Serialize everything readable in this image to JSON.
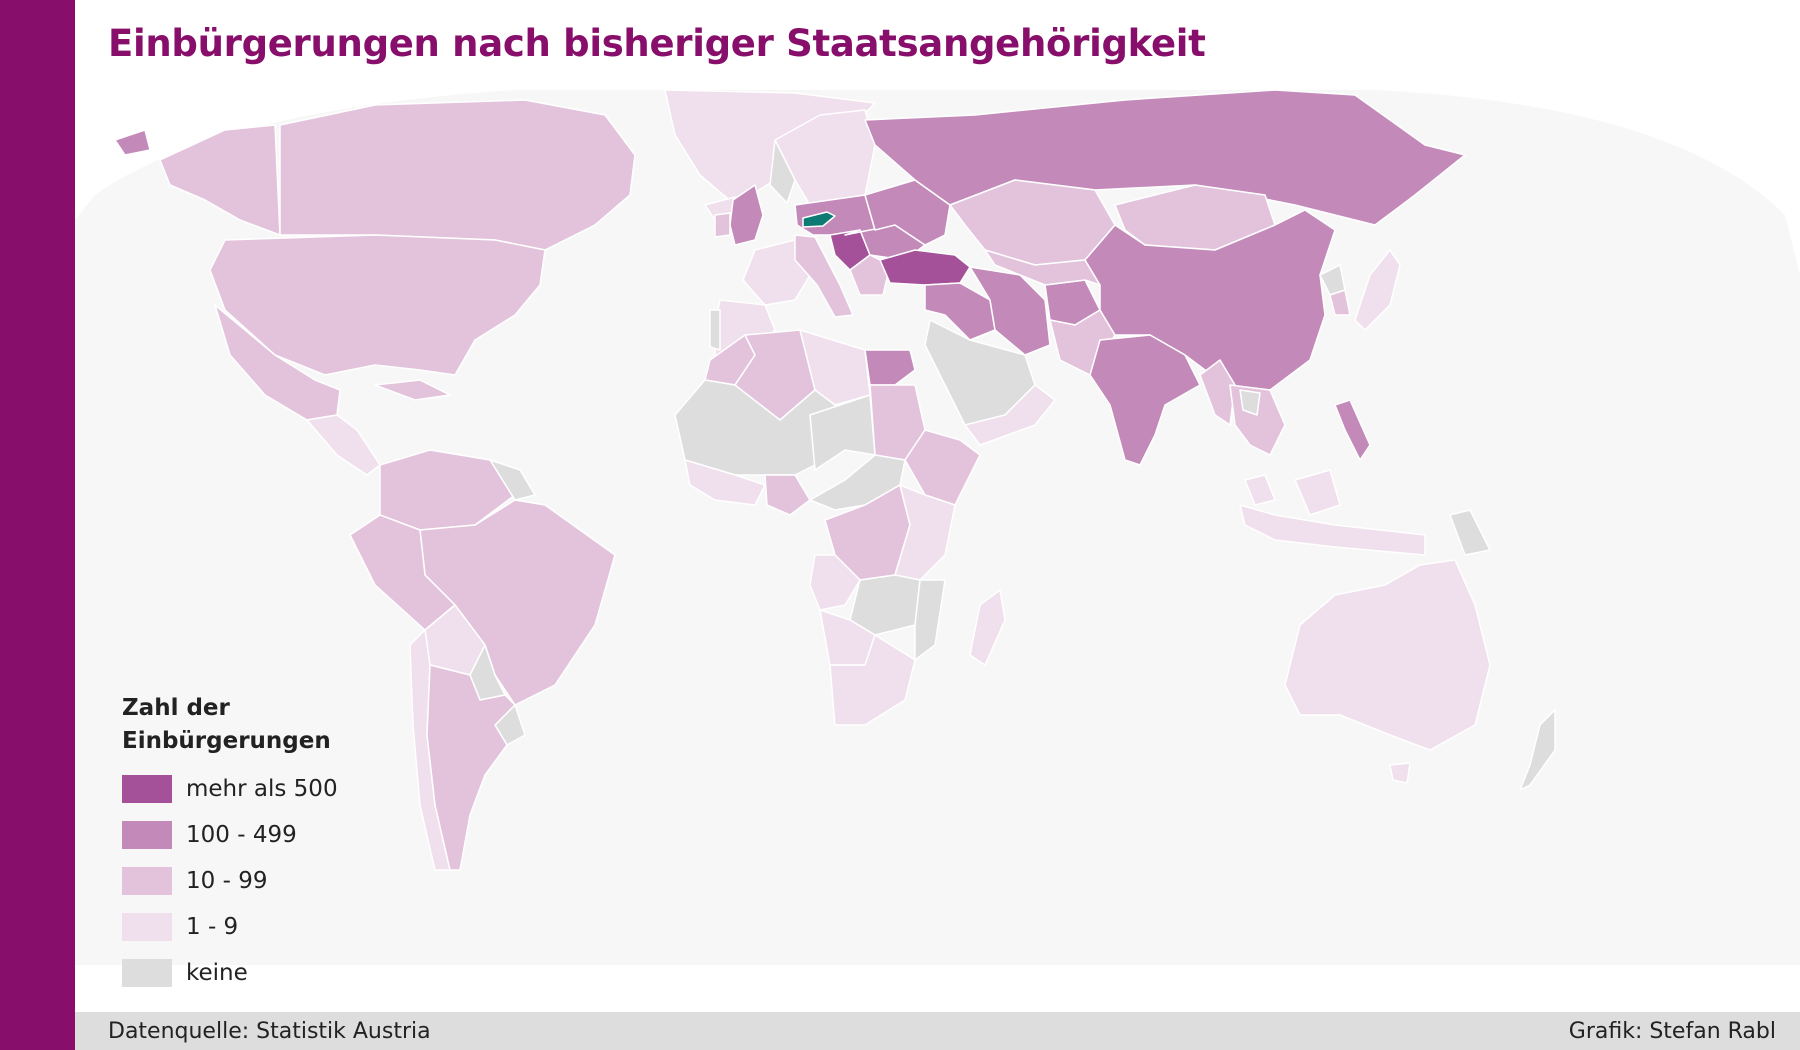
{
  "header": {
    "title": "Einbürgerungen nach bisheriger Staatsangehörigkeit"
  },
  "colors": {
    "accent": "#870e6a",
    "ocean": "#f7f7f7",
    "border": "#ffffff",
    "highlight": "#0e7a74",
    "cat_500_plus": "#a4519a",
    "cat_100_499": "#c389b9",
    "cat_10_99": "#e3c3dc",
    "cat_1_9": "#f0dfec",
    "cat_none": "#dddddd"
  },
  "legend": {
    "title_line1": "Zahl der",
    "title_line2": "Einbürgerungen",
    "items": [
      {
        "label": "mehr als 500",
        "color": "#a4519a"
      },
      {
        "label": "100 - 499",
        "color": "#c389b9"
      },
      {
        "label": "10 - 99",
        "color": "#e3c3dc"
      },
      {
        "label": "1 - 9",
        "color": "#f0dfec"
      },
      {
        "label": "keine",
        "color": "#dddddd"
      }
    ]
  },
  "map": {
    "highlight_country": "Austria",
    "categories": {
      "mehr als 500": [
        "Turkey",
        "Bosnia and Herzegovina",
        "Serbia"
      ],
      "100 - 499": [
        "Russia",
        "China",
        "India",
        "Iran",
        "Afghanistan",
        "Iraq",
        "Syria",
        "Egypt",
        "Philippines",
        "Germany",
        "United Kingdom",
        "Poland",
        "Romania",
        "Hungary",
        "Kosovo",
        "North Macedonia",
        "Ukraine",
        "Croatia",
        "Slovakia",
        "Czech Republic"
      ],
      "10 - 99": [
        "United States",
        "Canada",
        "Mexico",
        "Brazil",
        "Argentina",
        "Colombia",
        "Peru",
        "Venezuela",
        "Kazakhstan",
        "Mongolia",
        "Pakistan",
        "Nigeria",
        "Algeria",
        "Sudan",
        "Ethiopia",
        "DR Congo",
        "Thailand",
        "Vietnam",
        "Indonesia",
        "Italy",
        "France"
      ],
      "1 - 9": [
        "Australia",
        "Greenland",
        "Chile",
        "Bolivia",
        "Libya",
        "Morocco",
        "Kenya",
        "Tanzania",
        "Madagascar",
        "South Africa",
        "Angola",
        "Japan",
        "Malaysia",
        "Saudi Arabia",
        "Spain",
        "Sweden"
      ],
      "keine": [
        "Mali",
        "Niger",
        "Chad",
        "Mauritania",
        "Zambia",
        "Mozambique",
        "Zimbabwe",
        "Paraguay",
        "Uruguay",
        "Guyana",
        "Papua New Guinea",
        "New Zealand",
        "North Korea",
        "Oman",
        "Yemen"
      ]
    }
  },
  "footer": {
    "source": "Datenquelle: Statistik Austria",
    "credit": "Grafik: Stefan Rabl"
  }
}
